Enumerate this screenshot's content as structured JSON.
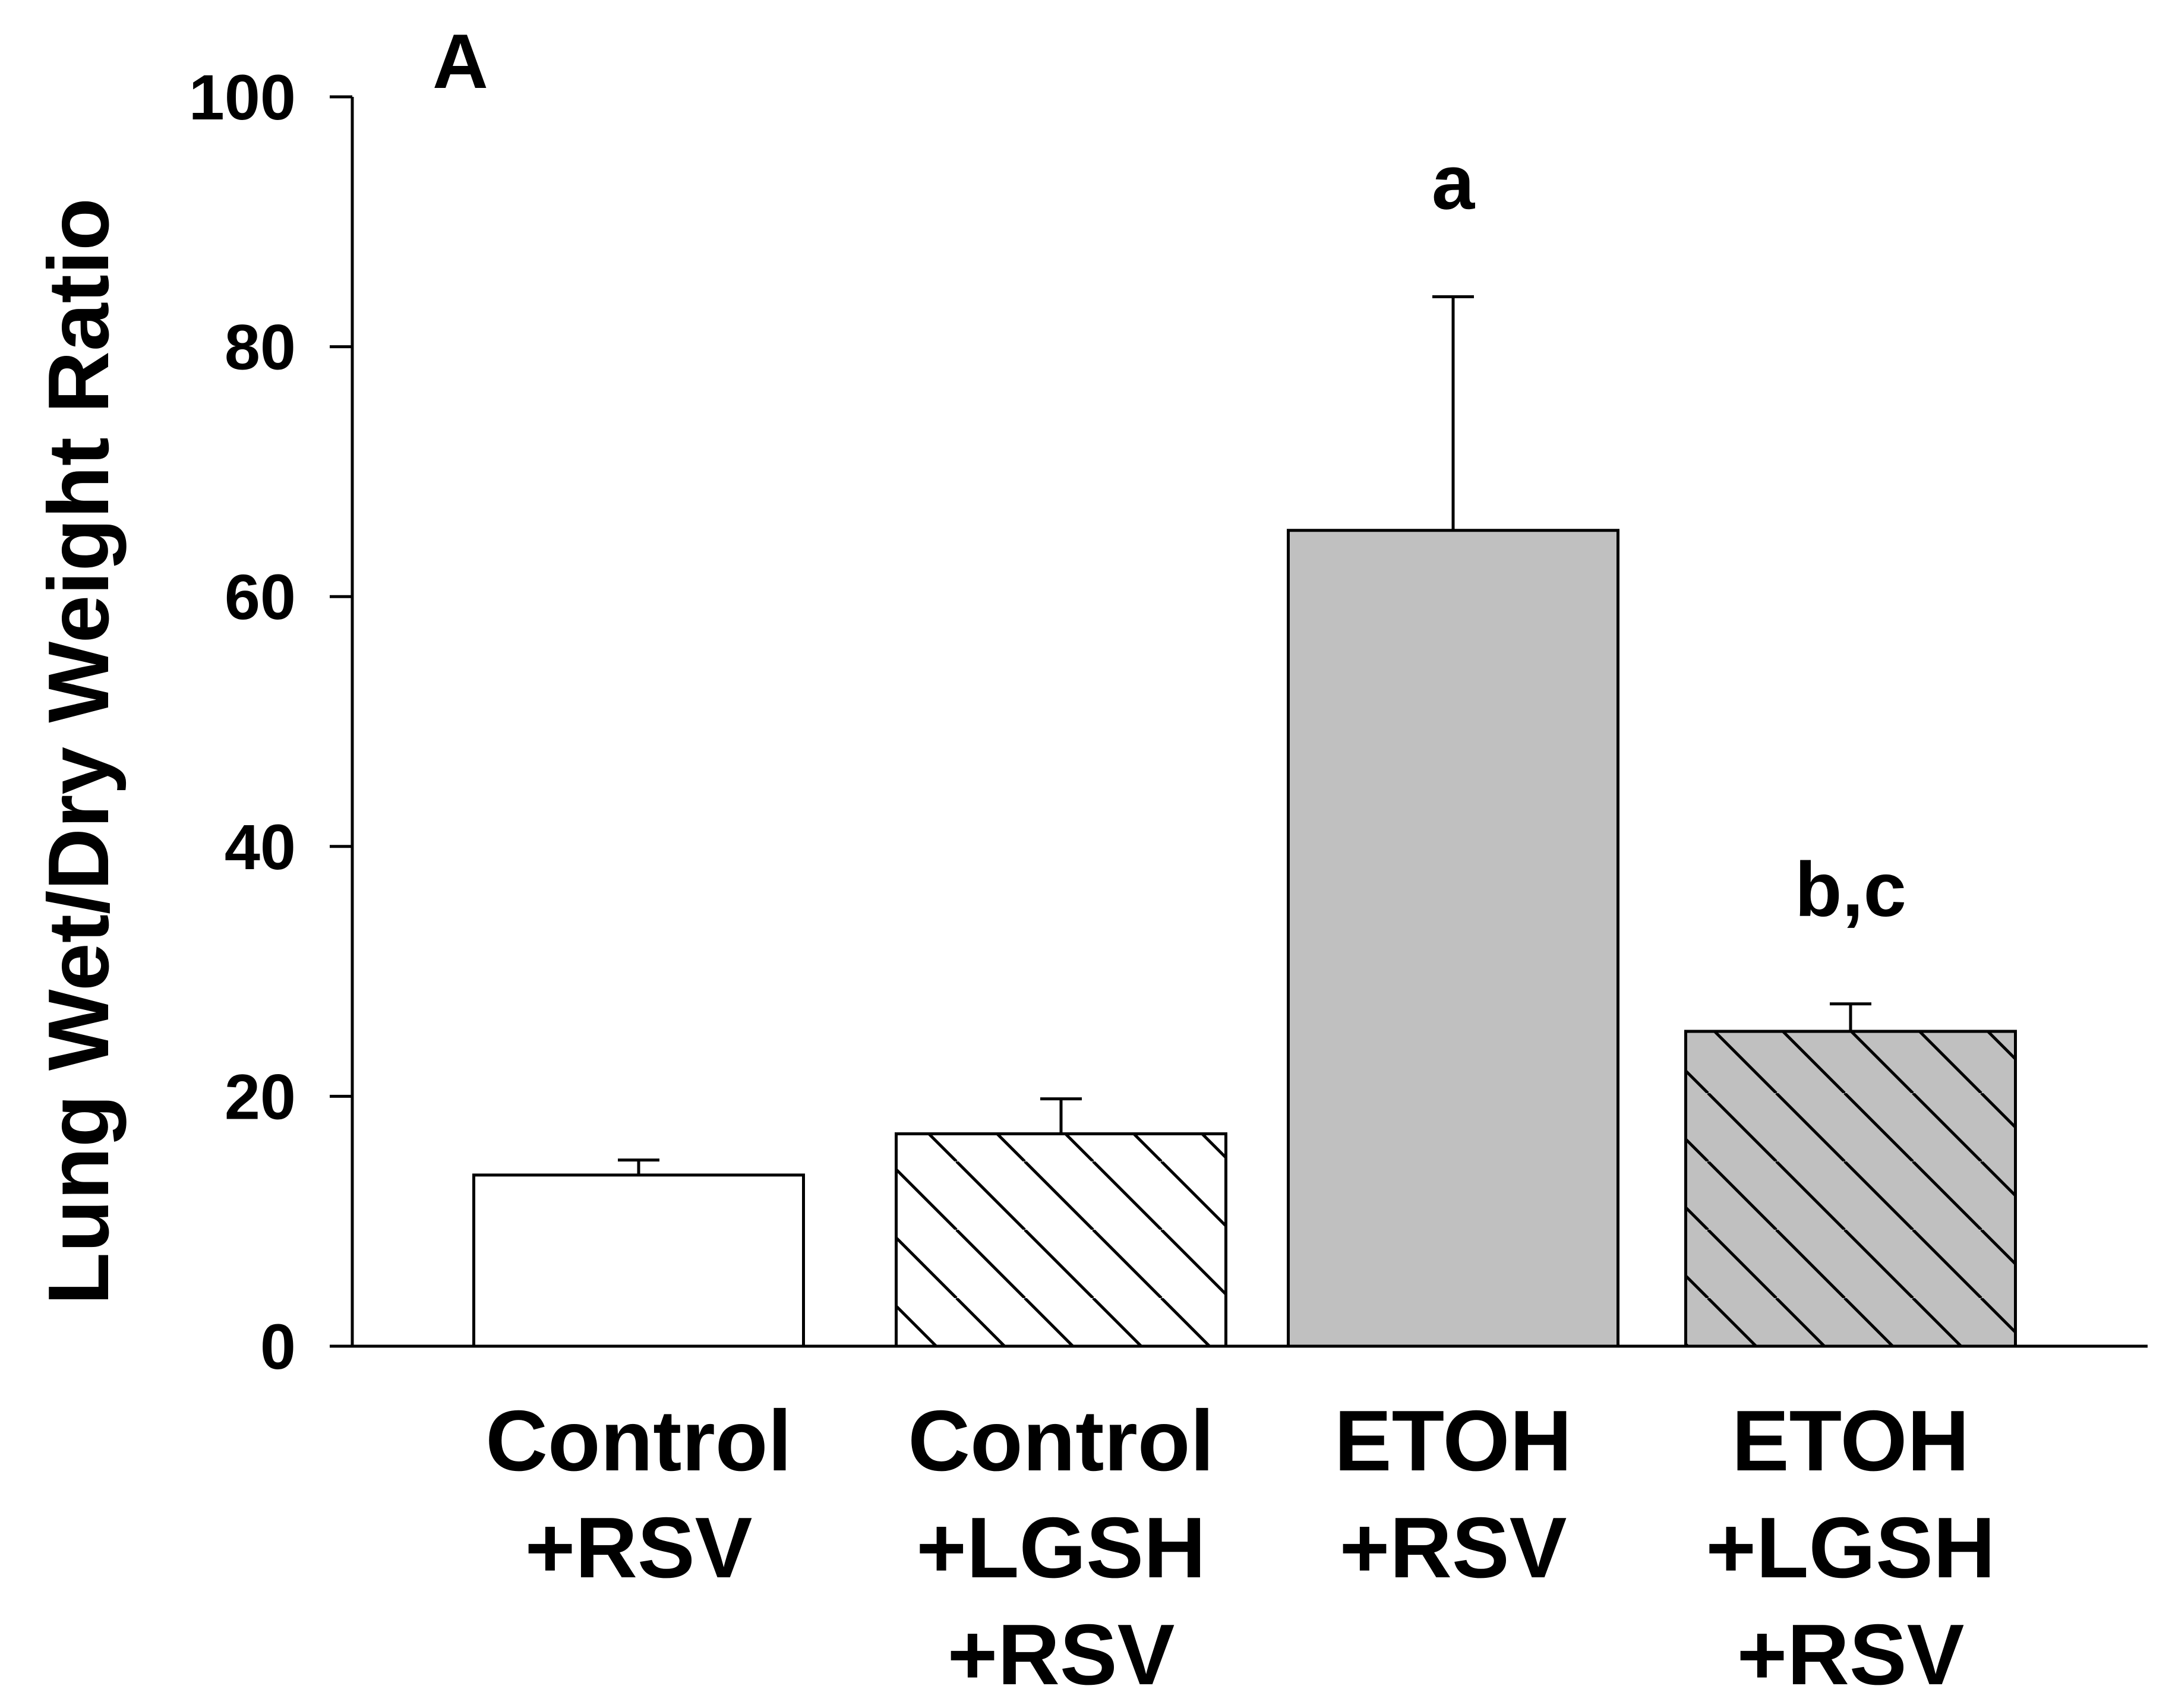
{
  "chart_data": {
    "type": "bar",
    "panel_label": "A",
    "title": "",
    "xlabel": "",
    "ylabel": "Lung Wet/Dry Weight Ratio",
    "ylim": [
      0,
      100
    ],
    "yticks": [
      0,
      20,
      40,
      60,
      80,
      100
    ],
    "grid": false,
    "legend": "none",
    "categories": [
      [
        "Control",
        "+RSV"
      ],
      [
        "Control",
        "+LGSH",
        "+RSV"
      ],
      [
        "ETOH",
        "+RSV"
      ],
      [
        "ETOH",
        "+LGSH",
        "+RSV"
      ]
    ],
    "values": [
      13.7,
      17.0,
      65.3,
      25.2
    ],
    "errors": [
      1.2,
      2.8,
      18.7,
      2.2
    ],
    "annotations": [
      "",
      "",
      "a",
      "b,c"
    ],
    "fills": [
      {
        "color": "#ffffff",
        "hatch": false
      },
      {
        "color": "#ffffff",
        "hatch": true
      },
      {
        "color": "#c0c0c0",
        "hatch": false
      },
      {
        "color": "#c0c0c0",
        "hatch": true
      }
    ]
  }
}
